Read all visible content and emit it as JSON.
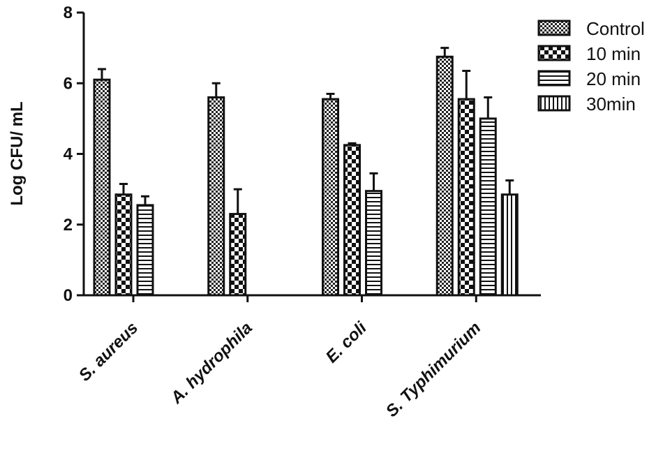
{
  "chart_data": {
    "type": "bar",
    "y_label": "Log CFU/ mL",
    "categories": [
      "S. aureus",
      "A. hydrophila",
      "E. coli",
      "S. Typhimurium"
    ],
    "series": [
      {
        "name": "Control",
        "pattern": "checker-fine",
        "values": [
          6.1,
          5.6,
          5.55,
          6.75
        ],
        "errors": [
          0.3,
          0.4,
          0.15,
          0.25
        ]
      },
      {
        "name": "10 min",
        "pattern": "checker-large",
        "values": [
          2.85,
          2.3,
          4.25,
          5.55
        ],
        "errors": [
          0.3,
          0.7,
          0.05,
          0.8
        ]
      },
      {
        "name": "20 min",
        "pattern": "horizontal",
        "values": [
          2.55,
          null,
          2.95,
          5.0
        ],
        "errors": [
          0.25,
          null,
          0.5,
          0.6
        ]
      },
      {
        "name": "30min",
        "pattern": "vertical",
        "values": [
          null,
          null,
          null,
          2.85
        ],
        "errors": [
          null,
          null,
          null,
          0.4
        ]
      }
    ],
    "ylim": [
      0,
      8
    ],
    "yticks": [
      0,
      2,
      4,
      6,
      8
    ],
    "legend": "top-right"
  }
}
